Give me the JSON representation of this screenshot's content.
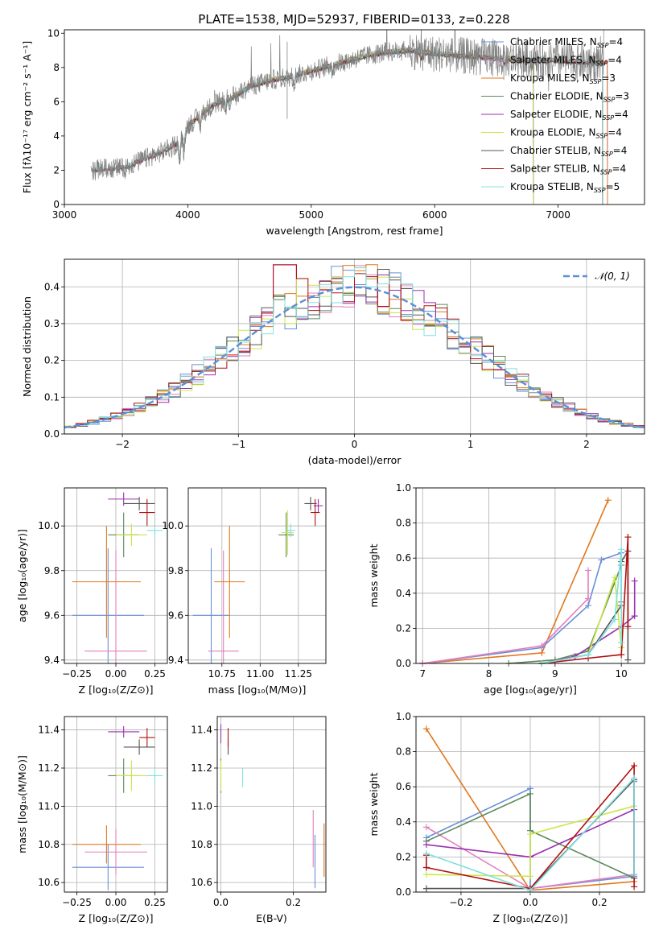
{
  "title": "PLATE=1538, MJD=52937, FIBERID=0133, z=0.228",
  "colors": {
    "ChabrierMILES": "#6b8fd9",
    "SalpeterMILES": "#e37fbd",
    "KroupaMILES": "#e0781e",
    "ChabrierELODIE": "#5b8a5b",
    "SalpeterELODIE": "#9b30b0",
    "KroupaELODIE": "#cce64a",
    "ChabrierSTELIB": "#555555",
    "SalpeterSTELIB": "#b01010",
    "KroupaSTELIB": "#80e0e0",
    "observed": "#808080",
    "normal": "#5b8fd9"
  },
  "chart_data": [
    {
      "id": "spectrum",
      "type": "line",
      "xlabel": "wavelength [Angstrom, rest frame]",
      "ylabel": "Flux [fλ10⁻¹⁷ erg cm⁻² s⁻¹ A⁻¹]",
      "xlim": [
        3000,
        7700
      ],
      "ylim": [
        0,
        10.2
      ],
      "xticks": [
        3000,
        4000,
        5000,
        6000,
        7000
      ],
      "yticks": [
        0,
        2,
        4,
        6,
        8,
        10
      ],
      "grid": false,
      "legend_position": "top-right",
      "legend": [
        {
          "key": "ChabrierMILES",
          "label": "Chabrier MILES, N",
          "sub": "SSP",
          "tail": "=4"
        },
        {
          "key": "SalpeterMILES",
          "label": "Salpeter MILES, N",
          "sub": "SSP",
          "tail": "=4"
        },
        {
          "key": "KroupaMILES",
          "label": "Kroupa MILES, N",
          "sub": "SSP",
          "tail": "=3"
        },
        {
          "key": "ChabrierELODIE",
          "label": "Chabrier ELODIE, N",
          "sub": "SSP",
          "tail": "=3"
        },
        {
          "key": "SalpeterELODIE",
          "label": "Salpeter ELODIE, N",
          "sub": "SSP",
          "tail": "=4"
        },
        {
          "key": "KroupaELODIE",
          "label": "Kroupa ELODIE, N",
          "sub": "SSP",
          "tail": "=4"
        },
        {
          "key": "ChabrierSTELIB",
          "label": "Chabrier STELIB, N",
          "sub": "SSP",
          "tail": "=4"
        },
        {
          "key": "SalpeterSTELIB",
          "label": "Salpeter STELIB, N",
          "sub": "SSP",
          "tail": "=4"
        },
        {
          "key": "KroupaSTELIB",
          "label": "Kroupa STELIB, N",
          "sub": "SSP",
          "tail": "=5"
        }
      ],
      "continuum": {
        "x": [
          3200,
          3300,
          3400,
          3500,
          3600,
          3700,
          3800,
          3900,
          3950,
          4000,
          4100,
          4200,
          4300,
          4400,
          4500,
          4600,
          4700,
          4800,
          4900,
          5000,
          5200,
          5400,
          5600,
          5800,
          6000,
          6200,
          6400,
          6600,
          6800,
          7000,
          7200,
          7350
        ],
        "y": [
          1.9,
          2.1,
          2.1,
          2.2,
          2.5,
          2.8,
          3.1,
          3.5,
          3.8,
          4.6,
          5.2,
          5.8,
          6.1,
          6.4,
          6.9,
          7.1,
          7.3,
          7.4,
          7.6,
          7.8,
          8.2,
          8.6,
          8.9,
          9.0,
          8.8,
          8.7,
          8.6,
          8.5,
          8.4,
          8.4,
          8.3,
          8.3
        ]
      }
    },
    {
      "id": "residuals",
      "type": "bar",
      "xlabel": "(data-model)/error",
      "ylabel": "Normed distribution",
      "xlim": [
        -2.5,
        2.5
      ],
      "ylim": [
        0,
        0.475
      ],
      "xticks": [
        -2,
        -1,
        0,
        1,
        2
      ],
      "yticks": [
        0.0,
        0.1,
        0.2,
        0.3,
        0.4
      ],
      "grid": true,
      "legend_position": "top-right",
      "normal_label": "𝒩(0, 1)",
      "bin_edges_start": -2.5,
      "bin_width": 0.1
    },
    {
      "id": "age_vs_Z",
      "type": "scatter",
      "xlabel": "Z [log₁₀(Z/Z⊙)]",
      "ylabel": "age  [log₁₀(age/yr)]",
      "xlim": [
        -0.33,
        0.33
      ],
      "ylim": [
        9.385,
        10.17
      ],
      "xticks": [
        -0.25,
        0.0,
        0.25
      ],
      "xticklabels": [
        "−0.25",
        "0.00",
        "0.25"
      ],
      "yticks": [
        9.4,
        9.6,
        9.8,
        10.0
      ],
      "grid": true,
      "points": [
        {
          "key": "ChabrierMILES",
          "x": -0.05,
          "y": 9.6,
          "xe": 0.23,
          "ye": 0.3
        },
        {
          "key": "SalpeterMILES",
          "x": 0.0,
          "y": 9.44,
          "xe": 0.2,
          "ye": 0.45
        },
        {
          "key": "KroupaMILES",
          "x": -0.06,
          "y": 9.75,
          "xe": 0.22,
          "ye": 0.25
        },
        {
          "key": "ChabrierELODIE",
          "x": 0.05,
          "y": 9.96,
          "xe": 0.1,
          "ye": 0.1
        },
        {
          "key": "SalpeterELODIE",
          "x": 0.05,
          "y": 10.12,
          "xe": 0.1,
          "ye": 0.03
        },
        {
          "key": "KroupaELODIE",
          "x": 0.1,
          "y": 9.96,
          "xe": 0.1,
          "ye": 0.05
        },
        {
          "key": "ChabrierSTELIB",
          "x": 0.15,
          "y": 10.1,
          "xe": 0.1,
          "ye": 0.03
        },
        {
          "key": "SalpeterSTELIB",
          "x": 0.2,
          "y": 10.06,
          "xe": 0.05,
          "ye": 0.06
        },
        {
          "key": "KroupaSTELIB",
          "x": 0.25,
          "y": 9.98,
          "xe": 0.05,
          "ye": 0.03
        }
      ]
    },
    {
      "id": "age_vs_mass",
      "type": "scatter",
      "xlabel": "mass [log₁₀(M/M⊙)]",
      "ylabel": "",
      "xlim": [
        10.53,
        11.43
      ],
      "ylim": [
        9.385,
        10.17
      ],
      "xticks": [
        10.75,
        11.0,
        11.25
      ],
      "xticklabels": [
        "10.75",
        "11.00",
        "11.25"
      ],
      "yticks": [
        9.4,
        9.6,
        9.8,
        10.0
      ],
      "grid": true,
      "points": [
        {
          "key": "ChabrierMILES",
          "x": 10.68,
          "y": 9.6,
          "xe": 0.12,
          "ye": 0.3
        },
        {
          "key": "SalpeterMILES",
          "x": 10.76,
          "y": 9.44,
          "xe": 0.1,
          "ye": 0.45
        },
        {
          "key": "KroupaMILES",
          "x": 10.8,
          "y": 9.75,
          "xe": 0.1,
          "ye": 0.25
        },
        {
          "key": "ChabrierELODIE",
          "x": 11.17,
          "y": 9.96,
          "xe": 0.05,
          "ye": 0.1
        },
        {
          "key": "SalpeterELODIE",
          "x": 11.38,
          "y": 10.09,
          "xe": 0.03,
          "ye": 0.03
        },
        {
          "key": "KroupaELODIE",
          "x": 11.18,
          "y": 9.97,
          "xe": 0.04,
          "ye": 0.1
        },
        {
          "key": "ChabrierSTELIB",
          "x": 11.33,
          "y": 10.1,
          "xe": 0.04,
          "ye": 0.03
        },
        {
          "key": "SalpeterSTELIB",
          "x": 11.36,
          "y": 10.06,
          "xe": 0.03,
          "ye": 0.06
        },
        {
          "key": "KroupaSTELIB",
          "x": 11.2,
          "y": 9.98,
          "xe": 0.03,
          "ye": 0.03
        }
      ]
    },
    {
      "id": "weight_vs_age",
      "type": "line",
      "xlabel": "age  [log₁₀(age/yr)]",
      "ylabel": "mass weight",
      "xlim": [
        6.9,
        10.35
      ],
      "ylim": [
        0,
        1.0
      ],
      "xticks": [
        7,
        8,
        9,
        10
      ],
      "yticks": [
        0.0,
        0.2,
        0.4,
        0.6,
        0.8,
        1.0
      ],
      "grid": true,
      "series": [
        {
          "key": "KroupaMILES",
          "x": [
            7.0,
            8.8,
            9.8
          ],
          "y": [
            0.0,
            0.06,
            0.93
          ]
        },
        {
          "key": "ChabrierMILES",
          "x": [
            7.0,
            8.8,
            9.5,
            9.7,
            10.0
          ],
          "y": [
            0.0,
            0.09,
            0.33,
            0.59,
            0.63
          ]
        },
        {
          "key": "SalpeterMILES",
          "x": [
            7.0,
            8.8,
            9.5,
            9.5
          ],
          "y": [
            0.0,
            0.1,
            0.37,
            0.53
          ]
        },
        {
          "key": "ChabrierELODIE",
          "x": [
            8.3,
            9.0,
            9.5,
            10.0,
            10.0
          ],
          "y": [
            0.0,
            0.02,
            0.07,
            0.56,
            0.35
          ]
        },
        {
          "key": "SalpeterELODIE",
          "x": [
            8.8,
            9.3,
            10.0,
            10.2,
            10.2
          ],
          "y": [
            0.0,
            0.04,
            0.21,
            0.27,
            0.47
          ]
        },
        {
          "key": "KroupaELODIE",
          "x": [
            8.8,
            9.5,
            9.9,
            10.0
          ],
          "y": [
            0.0,
            0.05,
            0.49,
            0.09
          ]
        },
        {
          "key": "ChabrierSTELIB",
          "x": [
            8.8,
            9.5,
            10.0,
            10.0,
            10.1,
            10.1
          ],
          "y": [
            0.0,
            0.05,
            0.33,
            0.58,
            0.64,
            0.02
          ]
        },
        {
          "key": "SalpeterSTELIB",
          "x": [
            8.8,
            9.5,
            10.0,
            10.1,
            10.1
          ],
          "y": [
            0.0,
            0.03,
            0.05,
            0.72,
            0.21
          ]
        },
        {
          "key": "KroupaSTELIB",
          "x": [
            8.8,
            9.5,
            9.9,
            10.0,
            10.0
          ],
          "y": [
            0.0,
            0.05,
            0.25,
            0.65,
            0.12
          ]
        }
      ]
    },
    {
      "id": "mass_vs_Z",
      "type": "scatter",
      "xlabel": "Z [log₁₀(Z/Z⊙)]",
      "ylabel": "mass [log₁₀(M/M⊙)]",
      "xlim": [
        -0.33,
        0.33
      ],
      "ylim": [
        10.55,
        11.47
      ],
      "xticks": [
        -0.25,
        0.0,
        0.25
      ],
      "xticklabels": [
        "−0.25",
        "0.00",
        "0.25"
      ],
      "yticks": [
        10.6,
        10.8,
        11.0,
        11.2,
        11.4
      ],
      "grid": true,
      "points": [
        {
          "key": "ChabrierMILES",
          "x": -0.05,
          "y": 10.68,
          "xe": 0.23,
          "ye": 0.12
        },
        {
          "key": "SalpeterMILES",
          "x": 0.0,
          "y": 10.76,
          "xe": 0.2,
          "ye": 0.12
        },
        {
          "key": "KroupaMILES",
          "x": -0.06,
          "y": 10.8,
          "xe": 0.22,
          "ye": 0.1
        },
        {
          "key": "ChabrierELODIE",
          "x": 0.05,
          "y": 11.16,
          "xe": 0.1,
          "ye": 0.09
        },
        {
          "key": "SalpeterELODIE",
          "x": 0.05,
          "y": 11.39,
          "xe": 0.1,
          "ye": 0.03
        },
        {
          "key": "KroupaELODIE",
          "x": 0.1,
          "y": 11.16,
          "xe": 0.1,
          "ye": 0.08
        },
        {
          "key": "ChabrierSTELIB",
          "x": 0.15,
          "y": 11.31,
          "xe": 0.1,
          "ye": 0.04
        },
        {
          "key": "SalpeterSTELIB",
          "x": 0.2,
          "y": 11.36,
          "xe": 0.05,
          "ye": 0.05
        },
        {
          "key": "KroupaSTELIB",
          "x": 0.25,
          "y": 11.16,
          "xe": 0.05,
          "ye": 0.04
        }
      ]
    },
    {
      "id": "mass_vs_ebv",
      "type": "scatter",
      "xlabel": "E(B-V)",
      "ylabel": "",
      "xlim": [
        -0.01,
        0.29
      ],
      "ylim": [
        10.55,
        11.47
      ],
      "xticks": [
        0.0,
        0.2
      ],
      "xticklabels": [
        "0.0",
        "0.2"
      ],
      "yticks": [
        10.6,
        10.8,
        11.0,
        11.2,
        11.4
      ],
      "grid": true,
      "points": [
        {
          "key": "ChabrierMILES",
          "x": 0.26,
          "y": 10.71,
          "xe": 0.0,
          "ye": 0.14
        },
        {
          "key": "SalpeterMILES",
          "x": 0.255,
          "y": 10.83,
          "xe": 0.0,
          "ye": 0.15
        },
        {
          "key": "KroupaMILES",
          "x": 0.285,
          "y": 10.77,
          "xe": 0.0,
          "ye": 0.14
        },
        {
          "key": "ChabrierELODIE",
          "x": 0.0,
          "y": 11.16,
          "xe": 0.0,
          "ye": 0.09
        },
        {
          "key": "SalpeterELODIE",
          "x": 0.0,
          "y": 11.38,
          "xe": 0.0,
          "ye": 0.05
        },
        {
          "key": "KroupaELODIE",
          "x": 0.0,
          "y": 11.16,
          "xe": 0.0,
          "ye": 0.08
        },
        {
          "key": "ChabrierSTELIB",
          "x": 0.02,
          "y": 11.31,
          "xe": 0.0,
          "ye": 0.04
        },
        {
          "key": "SalpeterSTELIB",
          "x": 0.02,
          "y": 11.36,
          "xe": 0.0,
          "ye": 0.05
        },
        {
          "key": "KroupaSTELIB",
          "x": 0.06,
          "y": 11.15,
          "xe": 0.0,
          "ye": 0.05
        }
      ]
    },
    {
      "id": "weight_vs_Z",
      "type": "line",
      "xlabel": "Z [log₁₀(Z/Z⊙)]",
      "ylabel": "mass weight",
      "xlim": [
        -0.33,
        0.33
      ],
      "ylim": [
        0,
        1.0
      ],
      "xticks": [
        -0.2,
        0.0,
        0.2
      ],
      "xticklabels": [
        "−0.2",
        "0.0",
        "0.2"
      ],
      "yticks": [
        0.0,
        0.2,
        0.4,
        0.6,
        0.8,
        1.0
      ],
      "grid": true,
      "series": [
        {
          "key": "KroupaMILES",
          "x": [
            -0.3,
            0.0,
            0.3
          ],
          "y": [
            0.93,
            0.01,
            0.06
          ]
        },
        {
          "key": "ChabrierMILES",
          "x": [
            -0.3,
            0.0,
            0.0,
            0.3,
            0.3
          ],
          "y": [
            0.31,
            0.59,
            0.02,
            0.09,
            0.63
          ]
        },
        {
          "key": "SalpeterMILES",
          "x": [
            -0.3,
            0.0,
            0.3
          ],
          "y": [
            0.37,
            0.02,
            0.1
          ]
        },
        {
          "key": "ChabrierELODIE",
          "x": [
            -0.3,
            0.0,
            0.0,
            0.3
          ],
          "y": [
            0.29,
            0.56,
            0.35,
            0.08
          ]
        },
        {
          "key": "SalpeterELODIE",
          "x": [
            -0.3,
            0.0,
            0.3,
            0.3
          ],
          "y": [
            0.27,
            0.2,
            0.47,
            0.1
          ]
        },
        {
          "key": "KroupaELODIE",
          "x": [
            -0.3,
            0.0,
            0.0,
            0.3
          ],
          "y": [
            0.1,
            0.09,
            0.33,
            0.49
          ]
        },
        {
          "key": "ChabrierSTELIB",
          "x": [
            -0.3,
            0.0,
            0.3,
            0.3
          ],
          "y": [
            0.02,
            0.02,
            0.64,
            0.08
          ]
        },
        {
          "key": "SalpeterSTELIB",
          "x": [
            -0.3,
            -0.3,
            0.0,
            0.3,
            0.3
          ],
          "y": [
            0.21,
            0.14,
            0.02,
            0.72,
            0.03
          ]
        },
        {
          "key": "KroupaSTELIB",
          "x": [
            -0.3,
            0.0,
            0.3,
            0.3
          ],
          "y": [
            0.22,
            0.01,
            0.65,
            0.1
          ]
        }
      ]
    }
  ]
}
